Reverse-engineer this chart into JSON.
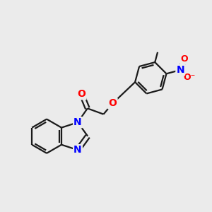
{
  "bg_color": "#ebebeb",
  "bond_color": "#1a1a1a",
  "nitrogen_color": "#0000ff",
  "oxygen_color": "#ff0000",
  "bond_width": 1.6,
  "font_size_atom": 10,
  "font_size_small": 9,
  "xlim": [
    0,
    10
  ],
  "ylim": [
    0,
    10
  ]
}
